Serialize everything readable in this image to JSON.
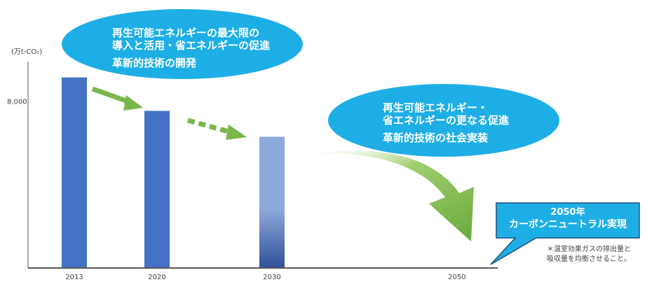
{
  "chart_data": {
    "type": "bar",
    "ylabel": "(万t-CO₂)",
    "y_ticks": [
      {
        "label": "8,000",
        "value": 8000
      }
    ],
    "ylim": [
      0,
      11500
    ],
    "categories": [
      "2013",
      "2020",
      "2030",
      "2050"
    ],
    "values": [
      9130,
      7530,
      6290,
      0
    ],
    "bar_colors": [
      "#4472c4",
      "#4472c4",
      "#8eaadb",
      null
    ],
    "grid": false,
    "annotations": {
      "bubble1": [
        "再生可能エネルギーの最大限の",
        "導入と活用・省エネルギーの促進",
        "革新的技術の開発"
      ],
      "bubble2": [
        "再生可能エネルギー・",
        "省エネルギーの更なる促進",
        "革新的技術の社会実装"
      ],
      "callout": [
        "2050年",
        "カーボンニュートラル実現"
      ],
      "footnote": [
        "＊温室効果ガスの排出量と",
        "吸収量を均衡させること。"
      ]
    }
  },
  "colors": {
    "bubble": "#1eaee6",
    "arrow": "#7ab648",
    "bar_dark": "#4472c4",
    "bar_light": "#8eaadb",
    "axis": "#595959"
  }
}
